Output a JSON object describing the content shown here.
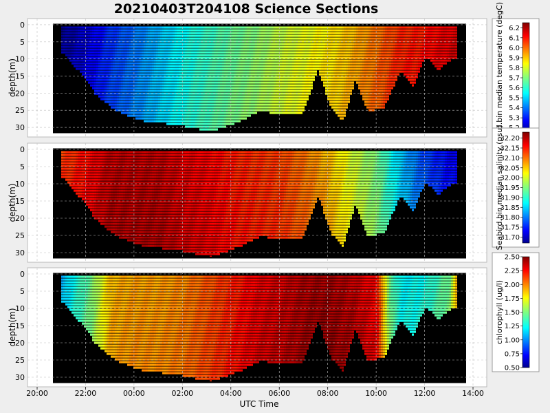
{
  "title": "20210403T204108 Science Sections",
  "x_axis": {
    "label": "UTC Time",
    "ticks": [
      "20:00",
      "22:00",
      "00:00",
      "02:00",
      "04:00",
      "06:00",
      "08:00",
      "10:00",
      "12:00",
      "14:00"
    ]
  },
  "chart_data": [
    {
      "type": "heatmap",
      "name": "temperature",
      "ylabel": "depth(m)",
      "yticks": [
        "0",
        "5",
        "10",
        "15",
        "20",
        "25",
        "30"
      ],
      "ylim": [
        32,
        -1
      ],
      "xlim_hours_utc": [
        "20:00",
        "14:10"
      ],
      "colorbar": {
        "label": "Seabird.bin median temperature (degC)",
        "min": 5.15,
        "max": 6.25,
        "ticks": [
          "5.2",
          "5.3",
          "5.4",
          "5.5",
          "5.6",
          "5.7",
          "5.8",
          "5.9",
          "6.0",
          "6.1",
          "6.2"
        ],
        "colormap": "jet"
      },
      "trend_along_track": [
        [
          20.7,
          5.15
        ],
        [
          22.0,
          5.25
        ],
        [
          23.0,
          5.35
        ],
        [
          0.0,
          5.42
        ],
        [
          1.0,
          5.5
        ],
        [
          2.0,
          5.58
        ],
        [
          3.0,
          5.63
        ],
        [
          4.0,
          5.68
        ],
        [
          5.0,
          5.72
        ],
        [
          6.0,
          5.78
        ],
        [
          7.0,
          5.82
        ],
        [
          8.0,
          5.86
        ],
        [
          9.0,
          5.92
        ],
        [
          10.0,
          6.0
        ],
        [
          11.0,
          6.08
        ],
        [
          12.0,
          6.1
        ],
        [
          13.0,
          6.15
        ],
        [
          13.8,
          6.15
        ]
      ],
      "grid": true
    },
    {
      "type": "heatmap",
      "name": "salinity",
      "ylabel": "depth(m)",
      "yticks": [
        "0",
        "5",
        "10",
        "15",
        "20",
        "25",
        "30"
      ],
      "ylim": [
        32,
        -1
      ],
      "xlim_hours_utc": [
        "20:00",
        "14:10"
      ],
      "colorbar": {
        "label": "Seabird.bin median salinity (psu)",
        "min": 31.67,
        "max": 32.23,
        "ticks": [
          "31.70",
          "31.75",
          "31.80",
          "31.85",
          "31.90",
          "31.95",
          "32.00",
          "32.05",
          "32.10",
          "32.15",
          "32.20"
        ],
        "colormap": "jet"
      },
      "trend_along_track": [
        [
          20.7,
          32.12
        ],
        [
          22.0,
          32.16
        ],
        [
          23.0,
          32.2
        ],
        [
          0.0,
          32.2
        ],
        [
          1.0,
          32.2
        ],
        [
          2.0,
          32.18
        ],
        [
          3.0,
          32.17
        ],
        [
          4.0,
          32.15
        ],
        [
          5.0,
          32.14
        ],
        [
          6.0,
          32.13
        ],
        [
          7.0,
          32.1
        ],
        [
          8.0,
          32.06
        ],
        [
          9.0,
          32.0
        ],
        [
          10.0,
          31.95
        ],
        [
          11.0,
          31.85
        ],
        [
          12.0,
          31.78
        ],
        [
          13.0,
          31.74
        ],
        [
          13.8,
          31.72
        ]
      ],
      "grid": true
    },
    {
      "type": "heatmap",
      "name": "chlorophyll",
      "ylabel": "depth(m)",
      "yticks": [
        "0",
        "5",
        "10",
        "15",
        "20",
        "25",
        "30"
      ],
      "ylim": [
        32,
        -1
      ],
      "xlim_hours_utc": [
        "20:00",
        "14:10"
      ],
      "colorbar": {
        "label": "chlorophyll (ug/l)",
        "min": 0.5,
        "max": 2.5,
        "ticks": [
          "0.50",
          "0.75",
          "1.00",
          "1.25",
          "1.50",
          "1.75",
          "2.00",
          "2.25",
          "2.50"
        ],
        "colormap": "jet"
      },
      "trend_along_track": [
        [
          20.7,
          1.0
        ],
        [
          21.5,
          1.3
        ],
        [
          22.2,
          1.5
        ],
        [
          23.0,
          1.9
        ],
        [
          0.0,
          1.95
        ],
        [
          1.0,
          1.95
        ],
        [
          2.0,
          2.0
        ],
        [
          3.0,
          2.1
        ],
        [
          4.0,
          2.2
        ],
        [
          5.0,
          2.3
        ],
        [
          6.0,
          2.35
        ],
        [
          7.0,
          2.42
        ],
        [
          8.0,
          2.45
        ],
        [
          9.0,
          2.38
        ],
        [
          10.0,
          2.25
        ],
        [
          10.5,
          1.5
        ],
        [
          11.0,
          1.25
        ],
        [
          12.0,
          1.3
        ],
        [
          13.0,
          1.5
        ],
        [
          13.5,
          2.2
        ],
        [
          13.8,
          2.0
        ]
      ],
      "grid": true
    }
  ]
}
